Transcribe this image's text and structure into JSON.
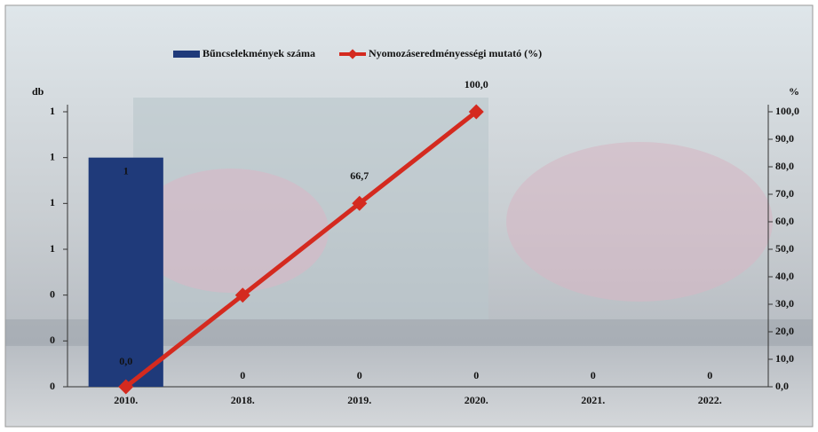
{
  "chart_data": {
    "type": "bar-line",
    "y_label": "db",
    "y2_label": "%",
    "categories": [
      "2010.",
      "2018.",
      "2019.",
      "2020.",
      "2021.",
      "2022."
    ],
    "series": [
      {
        "name": "Bűncselekmények száma",
        "type": "bar",
        "color": "#1f3a7a",
        "values": [
          1,
          0,
          0,
          0,
          0,
          0
        ],
        "value_labels": [
          "1",
          "0",
          "0",
          "0",
          "0",
          "0"
        ]
      },
      {
        "name": "Nyomozáseredményességi mutató (%)",
        "type": "line",
        "axis": "y2",
        "color": "#d42a1f",
        "values": [
          0,
          33.3,
          66.7,
          100,
          null,
          null
        ],
        "value_labels": [
          "0,0",
          null,
          "66,7",
          "100,0",
          null,
          null
        ]
      }
    ],
    "ylim": [
      0,
      1.2
    ],
    "yticks": [
      {
        "value": 0,
        "label": "0"
      },
      {
        "value": 0.2,
        "label": "0"
      },
      {
        "value": 0.4,
        "label": "0"
      },
      {
        "value": 0.6,
        "label": "1"
      },
      {
        "value": 0.8,
        "label": "1"
      },
      {
        "value": 1,
        "label": "1"
      },
      {
        "value": 1.2,
        "label": "1"
      }
    ],
    "y2lim": [
      0,
      100
    ],
    "y2ticks": [
      {
        "value": 0,
        "label": "0,0"
      },
      {
        "value": 10,
        "label": "10,0"
      },
      {
        "value": 20,
        "label": "20,0"
      },
      {
        "value": 30,
        "label": "30,0"
      },
      {
        "value": 40,
        "label": "40,0"
      },
      {
        "value": 50,
        "label": "50,0"
      },
      {
        "value": 60,
        "label": "60,0"
      },
      {
        "value": 70,
        "label": "70,0"
      },
      {
        "value": 80,
        "label": "80,0"
      },
      {
        "value": 90,
        "label": "90,0"
      },
      {
        "value": 100,
        "label": "100,0"
      }
    ],
    "legend": "top"
  }
}
